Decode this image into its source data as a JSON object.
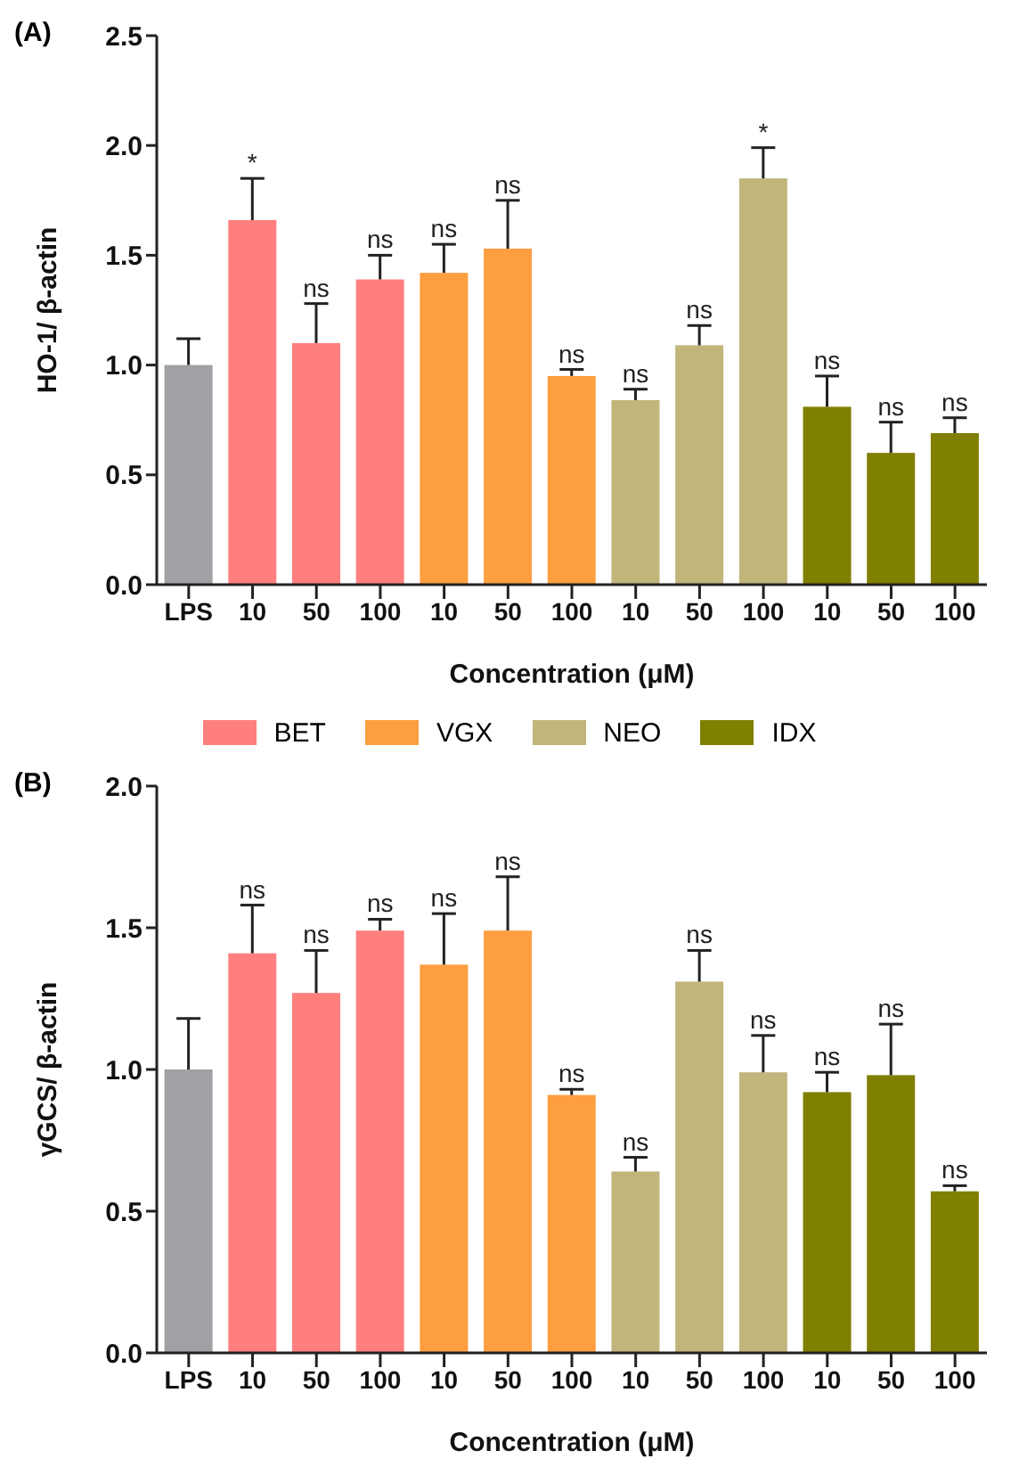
{
  "chart_data": [
    {
      "type": "bar",
      "title": "(A)",
      "xlabel": "Concentration (μM)",
      "ylabel": "HO-1/ β-actin",
      "categories": [
        "LPS",
        "10",
        "50",
        "100",
        "10",
        "50",
        "100",
        "10",
        "50",
        "100",
        "10",
        "50",
        "100"
      ],
      "ylim": [
        0,
        2.5
      ],
      "yticks": [
        {
          "value": 0,
          "label": "0.0"
        },
        0.5,
        {
          "value": 1,
          "label": "1.0"
        },
        1.5,
        {
          "value": 2,
          "label": "2.0"
        },
        2.5
      ],
      "legend": "bottom",
      "series": [
        {
          "color": "#a1a0a5",
          "values": [
            1.0,
            null,
            null,
            null,
            null,
            null,
            null,
            null,
            null,
            null,
            null,
            null,
            null
          ],
          "errors": [
            0.12,
            null,
            null,
            null,
            null,
            null,
            null,
            null,
            null,
            null,
            null,
            null,
            null
          ]
        },
        {
          "name": "BET",
          "color": "#ff7f7f",
          "values": [
            null,
            1.66,
            1.1,
            1.39,
            null,
            null,
            null,
            null,
            null,
            null,
            null,
            null,
            null
          ],
          "errors": [
            null,
            0.19,
            0.18,
            0.11,
            null,
            null,
            null,
            null,
            null,
            null,
            null,
            null,
            null
          ],
          "value_labels": [
            null,
            "*",
            "ns",
            "ns",
            null,
            null,
            null,
            null,
            null,
            null,
            null,
            null,
            null
          ]
        },
        {
          "name": "VGX",
          "color": "#fd9e40",
          "values": [
            null,
            null,
            null,
            null,
            1.42,
            1.53,
            0.95,
            null,
            null,
            null,
            null,
            null,
            null
          ],
          "errors": [
            null,
            null,
            null,
            null,
            0.13,
            0.22,
            0.03,
            null,
            null,
            null,
            null,
            null,
            null
          ],
          "value_labels": [
            null,
            null,
            null,
            null,
            "ns",
            "ns",
            "ns",
            null,
            null,
            null,
            null,
            null,
            null
          ]
        },
        {
          "name": "NEO",
          "color": "#c1b57c",
          "values": [
            null,
            null,
            null,
            null,
            null,
            null,
            null,
            0.84,
            1.09,
            1.85,
            null,
            null,
            null
          ],
          "errors": [
            null,
            null,
            null,
            null,
            null,
            null,
            null,
            0.05,
            0.09,
            0.14,
            null,
            null,
            null
          ],
          "value_labels": [
            null,
            null,
            null,
            null,
            null,
            null,
            null,
            "ns",
            "ns",
            "*",
            null,
            null,
            null
          ]
        },
        {
          "name": "IDX",
          "color": "#7f7f00",
          "values": [
            null,
            null,
            null,
            null,
            null,
            null,
            null,
            null,
            null,
            null,
            0.81,
            0.6,
            0.69
          ],
          "errors": [
            null,
            null,
            null,
            null,
            null,
            null,
            null,
            null,
            null,
            null,
            0.14,
            0.14,
            0.07
          ],
          "value_labels": [
            null,
            null,
            null,
            null,
            null,
            null,
            null,
            null,
            null,
            null,
            "ns",
            "ns",
            "ns"
          ]
        }
      ]
    },
    {
      "type": "bar",
      "title": "(B)",
      "xlabel": "Concentration (μM)",
      "ylabel": "γGCS/ β-actin",
      "categories": [
        "LPS",
        "10",
        "50",
        "100",
        "10",
        "50",
        "100",
        "10",
        "50",
        "100",
        "10",
        "50",
        "100"
      ],
      "ylim": [
        0,
        2.0
      ],
      "yticks": [
        {
          "value": 0,
          "label": "0.0"
        },
        0.5,
        {
          "value": 1,
          "label": "1.0"
        },
        1.5,
        {
          "value": 2,
          "label": "2.0"
        }
      ],
      "series": [
        {
          "color": "#a1a0a5",
          "values": [
            1.0,
            null,
            null,
            null,
            null,
            null,
            null,
            null,
            null,
            null,
            null,
            null,
            null
          ],
          "errors": [
            0.18,
            null,
            null,
            null,
            null,
            null,
            null,
            null,
            null,
            null,
            null,
            null,
            null
          ]
        },
        {
          "color": "#ff7f7f",
          "values": [
            null,
            1.41,
            1.27,
            1.49,
            null,
            null,
            null,
            null,
            null,
            null,
            null,
            null,
            null
          ],
          "errors": [
            null,
            0.17,
            0.15,
            0.04,
            null,
            null,
            null,
            null,
            null,
            null,
            null,
            null,
            null
          ],
          "value_labels": [
            null,
            "ns",
            "ns",
            "ns",
            null,
            null,
            null,
            null,
            null,
            null,
            null,
            null,
            null
          ]
        },
        {
          "color": "#fd9e40",
          "values": [
            null,
            null,
            null,
            null,
            1.37,
            1.49,
            0.91,
            null,
            null,
            null,
            null,
            null,
            null
          ],
          "errors": [
            null,
            null,
            null,
            null,
            0.18,
            0.19,
            0.02,
            null,
            null,
            null,
            null,
            null,
            null
          ],
          "value_labels": [
            null,
            null,
            null,
            null,
            "ns",
            "ns",
            "ns",
            null,
            null,
            null,
            null,
            null,
            null
          ]
        },
        {
          "color": "#c1b57c",
          "values": [
            null,
            null,
            null,
            null,
            null,
            null,
            null,
            0.64,
            1.31,
            0.99,
            null,
            null,
            null
          ],
          "errors": [
            null,
            null,
            null,
            null,
            null,
            null,
            null,
            0.05,
            0.11,
            0.13,
            null,
            null,
            null
          ],
          "value_labels": [
            null,
            null,
            null,
            null,
            null,
            null,
            null,
            "ns",
            "ns",
            "ns",
            null,
            null,
            null
          ]
        },
        {
          "color": "#7f7f00",
          "values": [
            null,
            null,
            null,
            null,
            null,
            null,
            null,
            null,
            null,
            null,
            0.92,
            0.98,
            0.57
          ],
          "errors": [
            null,
            null,
            null,
            null,
            null,
            null,
            null,
            null,
            null,
            null,
            0.07,
            0.18,
            0.02
          ],
          "value_labels": [
            null,
            null,
            null,
            null,
            null,
            null,
            null,
            null,
            null,
            null,
            "ns",
            "ns",
            "ns"
          ]
        }
      ]
    }
  ]
}
